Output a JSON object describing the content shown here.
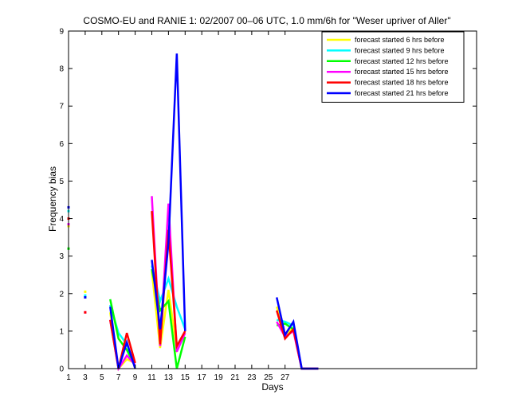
{
  "chart_data": {
    "type": "line",
    "title": "COSMO-EU and RANIE 1: 02/2007 00–06 UTC, 1.0 mm/6h for \"Weser upriver of Aller\"",
    "xlabel": "Days",
    "ylabel": "Frequency bias",
    "xlim": [
      1,
      50
    ],
    "ylim": [
      0,
      9
    ],
    "xticks": [
      1,
      3,
      5,
      7,
      9,
      11,
      13,
      15,
      17,
      19,
      21,
      23,
      25,
      27
    ],
    "xtick_labels": [
      "1",
      "3",
      "5",
      "7",
      "9",
      "11",
      "13",
      "15",
      "17",
      "19",
      "21",
      "23",
      "25",
      "27"
    ],
    "yticks": [
      0,
      1,
      2,
      3,
      4,
      5,
      6,
      7,
      8,
      9
    ],
    "ytick_labels": [
      "0",
      "1",
      "2",
      "3",
      "4",
      "5",
      "6",
      "7",
      "8",
      "9"
    ],
    "legend_position": "top-right",
    "grid": false,
    "x": [
      1,
      2,
      3,
      4,
      5,
      6,
      7,
      8,
      9,
      10,
      11,
      12,
      13,
      14,
      15,
      16,
      17,
      18,
      19,
      20,
      21,
      22,
      23,
      24,
      25,
      26,
      27,
      28,
      29,
      30,
      31
    ],
    "series": [
      {
        "name": "forecast started 6 hrs before",
        "color": "#ffff00",
        "values": [
          3.8,
          null,
          2.05,
          null,
          null,
          1.5,
          0.0,
          0.25,
          0.15,
          null,
          2.6,
          0.55,
          2.1,
          0.5,
          0.95,
          null,
          null,
          null,
          null,
          null,
          null,
          null,
          null,
          null,
          null,
          1.65,
          0.9,
          1.1,
          0.0,
          0.0,
          0.0
        ]
      },
      {
        "name": "forecast started 9 hrs before",
        "color": "#00ffff",
        "values": [
          4.2,
          null,
          1.95,
          null,
          null,
          1.7,
          0.95,
          0.65,
          0.05,
          null,
          2.75,
          1.8,
          2.4,
          1.65,
          1.05,
          null,
          null,
          null,
          null,
          null,
          null,
          null,
          null,
          null,
          null,
          1.3,
          1.25,
          1.15,
          0.0,
          0.0,
          0.0
        ]
      },
      {
        "name": "forecast started 12 hrs before",
        "color": "#00ff00",
        "values": [
          3.2,
          null,
          1.9,
          null,
          null,
          1.85,
          0.8,
          0.5,
          0.05,
          null,
          2.65,
          1.55,
          1.8,
          0.0,
          0.85,
          null,
          null,
          null,
          null,
          null,
          null,
          null,
          null,
          null,
          null,
          1.15,
          1.2,
          1.05,
          0.0,
          0.0,
          0.0
        ]
      },
      {
        "name": "forecast started 15 hrs before",
        "color": "#ff00ff",
        "values": [
          3.85,
          null,
          1.5,
          null,
          null,
          1.3,
          0.0,
          0.35,
          0.1,
          null,
          4.6,
          0.6,
          4.4,
          0.45,
          0.95,
          null,
          null,
          null,
          null,
          null,
          null,
          null,
          null,
          null,
          null,
          1.25,
          0.85,
          1.0,
          0.0,
          0.0,
          0.0
        ]
      },
      {
        "name": "forecast started 18 hrs before",
        "color": "#ff0000",
        "values": [
          4.0,
          null,
          1.5,
          null,
          null,
          1.3,
          0.0,
          0.95,
          0.15,
          null,
          4.2,
          0.65,
          3.7,
          0.6,
          1.0,
          null,
          null,
          null,
          null,
          null,
          null,
          null,
          null,
          null,
          null,
          1.55,
          0.8,
          1.05,
          0.0,
          0.0,
          0.0
        ]
      },
      {
        "name": "forecast started 21 hrs before",
        "color": "#0000ff",
        "values": [
          4.3,
          null,
          1.9,
          null,
          null,
          1.65,
          0.0,
          0.7,
          0.0,
          null,
          2.9,
          1.05,
          3.35,
          8.4,
          1.0,
          null,
          null,
          null,
          null,
          null,
          null,
          null,
          null,
          null,
          null,
          1.9,
          0.9,
          1.25,
          0.0,
          0.0,
          0.0
        ]
      }
    ]
  }
}
